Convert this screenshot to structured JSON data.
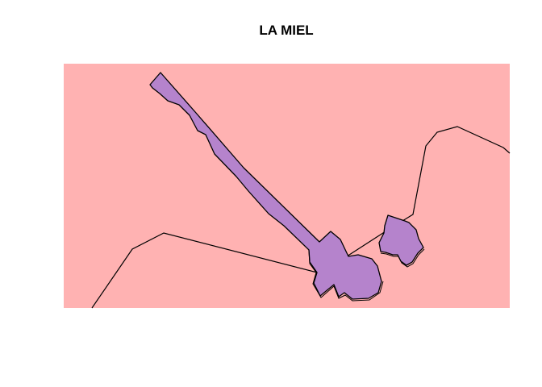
{
  "map": {
    "title": "LA MIEL",
    "colors": {
      "background_region": "#FFB2B2",
      "feature_fill": "#B583CC",
      "outline": "#000000"
    }
  }
}
